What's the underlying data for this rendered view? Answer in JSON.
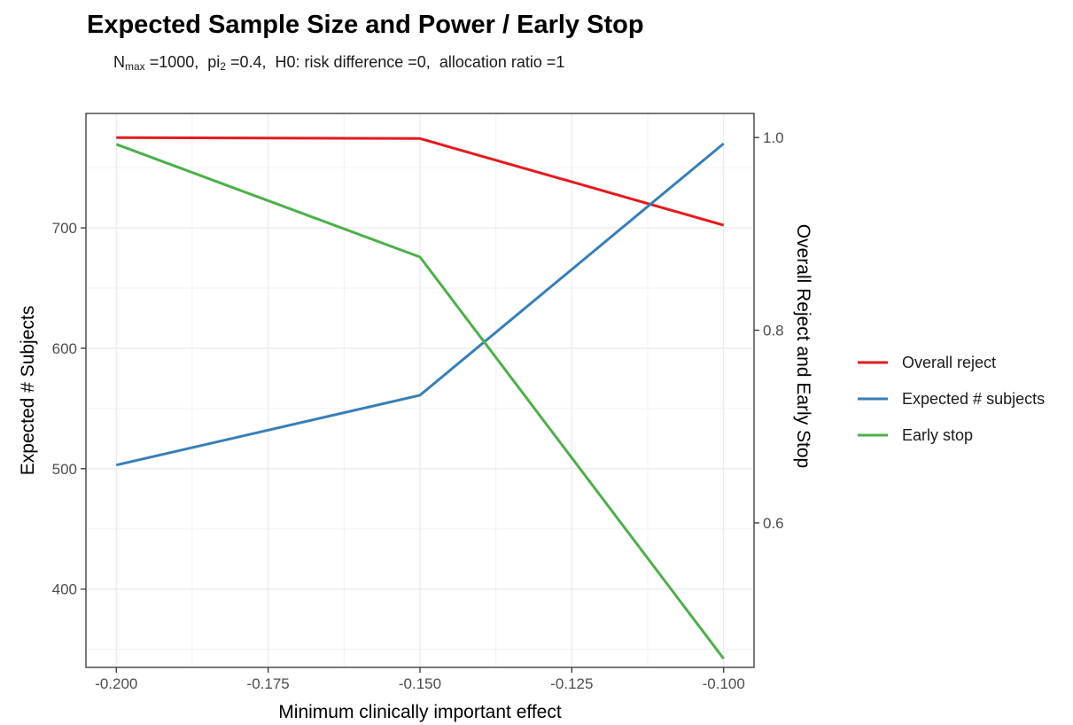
{
  "chart_data": {
    "type": "line",
    "title": "Expected Sample Size and Power / Early Stop",
    "subtitle": {
      "nmax_label": "N",
      "nmax_sub": "max",
      "nmax_value": "=1000,",
      "pi_label": "pi",
      "pi_sub": "2",
      "pi_value": "=0.4,",
      "h0": "H0: risk difference =0,",
      "allocation": "allocation ratio =1"
    },
    "xlabel": "Minimum clinically important effect",
    "ylabel_left": "Expected # Subjects",
    "ylabel_right": "Overall Reject and Early Stop",
    "x": [
      -0.2,
      -0.15,
      -0.1
    ],
    "xlim": [
      -0.205,
      -0.095
    ],
    "ylim_left": [
      335,
      795
    ],
    "ylim_right": [
      0.45,
      1.025
    ],
    "x_ticks": [
      -0.2,
      -0.175,
      -0.15,
      -0.125,
      -0.1
    ],
    "x_tick_labels": [
      "-0.200",
      "-0.175",
      "-0.150",
      "-0.125",
      "-0.100"
    ],
    "y_left_ticks": [
      400,
      500,
      600,
      700
    ],
    "y_left_tick_labels": [
      "400",
      "500",
      "600",
      "700"
    ],
    "y_right_ticks": [
      0.6,
      0.8,
      1.0
    ],
    "y_right_tick_labels": [
      "0.6",
      "0.8",
      "1.0"
    ],
    "grid": true,
    "legend_position": "right",
    "series": [
      {
        "name": "Overall reject",
        "axis": "right",
        "color": "#e41a1c",
        "values": [
          1.0,
          0.999,
          0.909
        ]
      },
      {
        "name": "Expected # subjects",
        "axis": "left",
        "color": "#377eb8",
        "values": [
          503,
          561,
          770
        ]
      },
      {
        "name": "Early stop",
        "axis": "right",
        "color": "#4daf4a",
        "values": [
          0.993,
          0.876,
          0.459
        ]
      }
    ]
  }
}
